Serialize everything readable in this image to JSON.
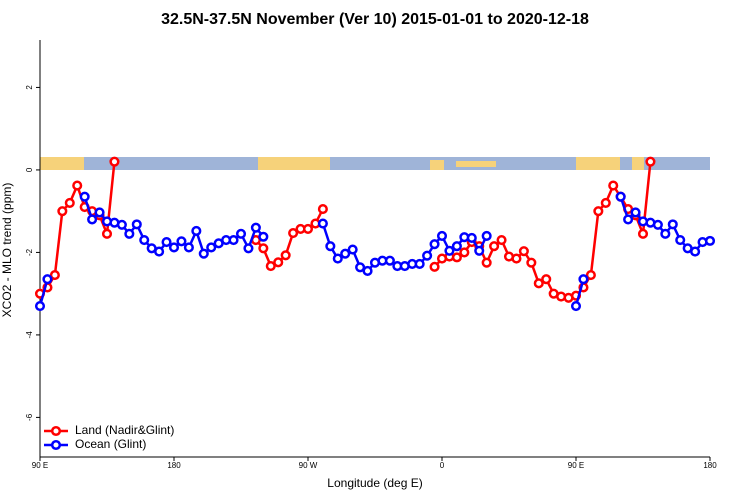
{
  "chart_data": {
    "type": "line",
    "title": "32.5N-37.5N November (Ver 10)   2015-01-01 to 2020-12-18",
    "x_label": "Longitude (deg E)",
    "y_label": "XCO2 - MLO trend (ppm)",
    "x": [
      90,
      95,
      100,
      105,
      110,
      115,
      120,
      125,
      130,
      135,
      140,
      145,
      150,
      155,
      160,
      165,
      170,
      175,
      180,
      185,
      190,
      195,
      200,
      205,
      210,
      215,
      220,
      225,
      230,
      235,
      240,
      245,
      250,
      255,
      260,
      265,
      270,
      275,
      280,
      285,
      290,
      295,
      300,
      305,
      310,
      315,
      320,
      325,
      330,
      335,
      340,
      345,
      350,
      355,
      360,
      365,
      370,
      375,
      380,
      385,
      390,
      395,
      400,
      405,
      410,
      415,
      420,
      425,
      430,
      435,
      440,
      445,
      450,
      455,
      460,
      465,
      470,
      475,
      480,
      485,
      490,
      495,
      500,
      505,
      510,
      515,
      520,
      525,
      530,
      535,
      540
    ],
    "series": [
      {
        "name": "Land (Nadir&Glint)",
        "color": "#ff0000",
        "values": [
          -3.0,
          -2.85,
          -2.55,
          -1.0,
          -0.8,
          -0.38,
          -0.9,
          -1.0,
          -1.1,
          -1.55,
          0.2,
          null,
          null,
          null,
          null,
          null,
          null,
          null,
          null,
          null,
          null,
          null,
          null,
          null,
          null,
          null,
          null,
          null,
          null,
          -1.7,
          -1.9,
          -2.33,
          -2.24,
          -2.07,
          -1.53,
          -1.43,
          -1.43,
          -1.3,
          -0.95,
          null,
          null,
          null,
          null,
          null,
          null,
          null,
          null,
          null,
          null,
          null,
          null,
          null,
          null,
          -2.35,
          -2.15,
          -2.1,
          -2.12,
          -2.0,
          -1.75,
          -1.85,
          -2.25,
          -1.85,
          -1.7,
          -2.1,
          -2.15,
          -1.97,
          -2.25,
          -2.75,
          -2.65,
          -3.0,
          -3.07,
          -3.1,
          -3.05,
          -2.85,
          -2.55,
          -1.0,
          -0.8,
          -0.38,
          -0.65,
          -0.95,
          -1.1,
          -1.55,
          0.2,
          null,
          null,
          null,
          null,
          null,
          null,
          null,
          null
        ]
      },
      {
        "name": "Ocean (Glint)",
        "color": "#0000ff",
        "values": [
          -3.3,
          -2.65,
          null,
          null,
          null,
          null,
          -0.65,
          -1.2,
          -1.03,
          -1.25,
          -1.28,
          -1.33,
          -1.55,
          -1.32,
          -1.7,
          -1.9,
          -1.98,
          -1.75,
          -1.88,
          -1.73,
          -1.88,
          -1.48,
          -2.03,
          -1.88,
          -1.78,
          -1.7,
          -1.7,
          -1.55,
          -1.9,
          -1.4,
          -1.62,
          null,
          null,
          null,
          null,
          null,
          null,
          null,
          -1.3,
          -1.85,
          -2.15,
          -2.03,
          -1.93,
          -2.36,
          -2.45,
          -2.25,
          -2.2,
          -2.2,
          -2.33,
          -2.33,
          -2.28,
          -2.28,
          -2.08,
          -1.8,
          -1.6,
          -1.96,
          -1.85,
          -1.63,
          -1.65,
          -1.96,
          -1.6,
          null,
          null,
          null,
          null,
          null,
          null,
          null,
          null,
          null,
          null,
          null,
          -3.3,
          -2.65,
          null,
          null,
          null,
          null,
          -0.65,
          -1.2,
          -1.03,
          -1.25,
          -1.28,
          -1.33,
          -1.55,
          -1.32,
          -1.7,
          -1.9,
          -1.98,
          -1.75,
          -1.72
        ]
      }
    ],
    "xlim": [
      90,
      540
    ],
    "xticks": [
      {
        "value": 90,
        "label": "90 E"
      },
      180,
      {
        "value": 270,
        "label": "90 W"
      },
      {
        "value": 360,
        "label": "0"
      },
      {
        "value": 450,
        "label": "90 E"
      },
      {
        "value": 540,
        "label": "180"
      }
    ],
    "ylim": [
      -6.96,
      3.15
    ],
    "yticks": [
      -6,
      -4,
      -2,
      0,
      2
    ],
    "legend": "bottom-left"
  }
}
